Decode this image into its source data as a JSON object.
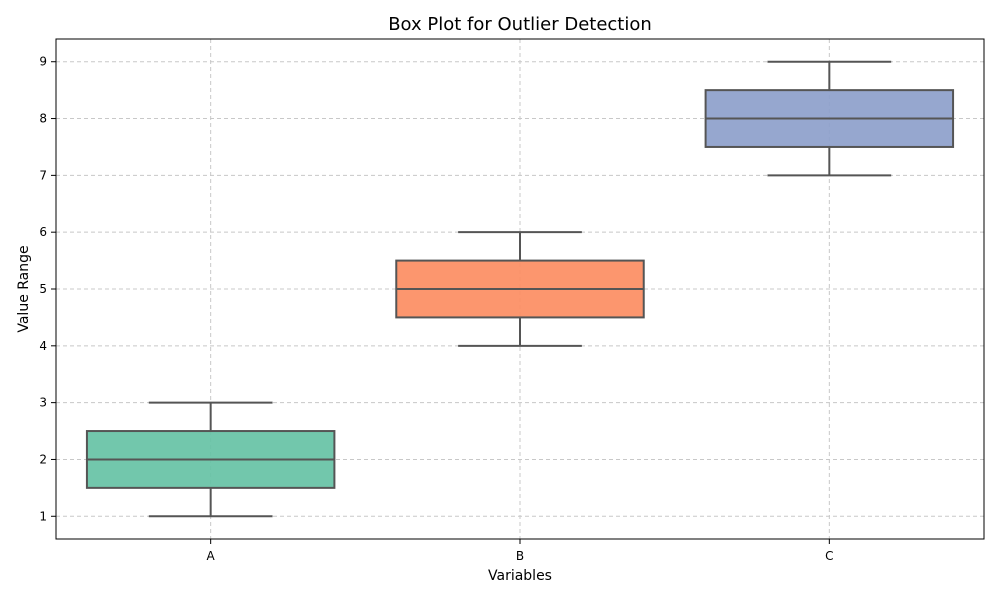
{
  "chart_data": {
    "type": "box",
    "title": "Box Plot for Outlier Detection",
    "xlabel": "Variables",
    "ylabel": "Value Range",
    "categories": [
      "A",
      "B",
      "C"
    ],
    "boxes": [
      {
        "category": "A",
        "min": 1,
        "q1": 1.5,
        "median": 2,
        "q3": 2.5,
        "max": 3,
        "color": "#66c2a5"
      },
      {
        "category": "B",
        "min": 4,
        "q1": 4.5,
        "median": 5,
        "q3": 5.5,
        "max": 6,
        "color": "#fc8d62"
      },
      {
        "category": "C",
        "min": 7,
        "q1": 7.5,
        "median": 8,
        "q3": 8.5,
        "max": 9,
        "color": "#8da0cb"
      }
    ],
    "yticks": [
      1,
      2,
      3,
      4,
      5,
      6,
      7,
      8,
      9
    ],
    "ylim": [
      0.6,
      9.4
    ],
    "grid": true,
    "line_color": "#555555"
  }
}
